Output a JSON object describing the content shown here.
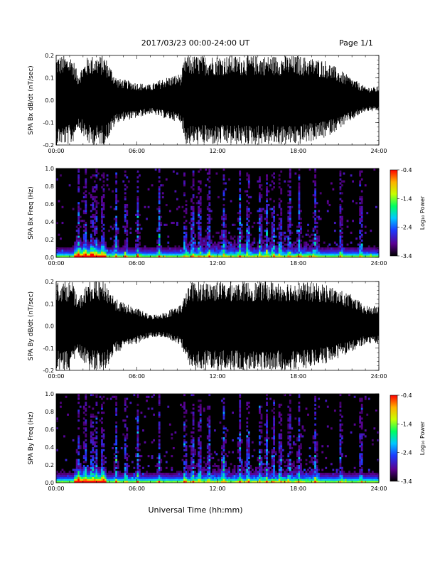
{
  "header": {
    "title": "2017/03/23  00:00-24:00 UT",
    "page": "Page 1/1"
  },
  "footer": {
    "xlabel": "Universal Time (hh:mm)"
  },
  "colors": {
    "background": "#000000",
    "colormap": [
      "#000000",
      "#5b0090",
      "#1b3bff",
      "#00c8ff",
      "#00ff60",
      "#c8ff00",
      "#ffb000",
      "#ff0000"
    ]
  },
  "chart_data": [
    {
      "type": "line",
      "ylabel": "SPA Bx dB/dt (nT/sec)",
      "x_ticks": [
        "00:00",
        "06:00",
        "12:00",
        "18:00",
        "24:00"
      ],
      "x_range_hours": [
        0,
        24
      ],
      "ylim": [
        -0.2,
        0.2
      ],
      "y_ticks": [
        "0.2",
        "0.1",
        "0.0",
        "-0.1",
        "-0.2"
      ],
      "y_tick_values": [
        0.2,
        0.1,
        0.0,
        -0.1,
        -0.2
      ],
      "envelope": {
        "hours": [
          0,
          1.2,
          1.6,
          2.4,
          3.6,
          4.5,
          5.2,
          6.0,
          7.0,
          8.0,
          9.3,
          9.6,
          12.0,
          15.0,
          18.0,
          20.0,
          22.0,
          23.0,
          24.0
        ],
        "max": [
          0.2,
          0.2,
          0.12,
          0.2,
          0.2,
          0.1,
          0.09,
          0.08,
          0.07,
          0.1,
          0.12,
          0.2,
          0.2,
          0.2,
          0.2,
          0.18,
          0.1,
          0.06,
          0.06
        ],
        "min": [
          -0.2,
          -0.2,
          -0.12,
          -0.2,
          -0.2,
          -0.1,
          -0.09,
          -0.08,
          -0.06,
          -0.08,
          -0.1,
          -0.2,
          -0.2,
          -0.2,
          -0.2,
          -0.17,
          -0.09,
          -0.05,
          -0.05
        ]
      }
    },
    {
      "type": "heatmap",
      "ylabel": "SPA Bx Freq (Hz)",
      "x_ticks": [
        "00:00",
        "06:00",
        "12:00",
        "18:00",
        "24:00"
      ],
      "ylim": [
        0,
        1.0
      ],
      "y_ticks": [
        "1.0",
        "0.8",
        "0.6",
        "0.4",
        "0.2",
        "0.0"
      ],
      "y_tick_values": [
        1.0,
        0.8,
        0.6,
        0.4,
        0.2,
        0.0
      ],
      "colorbar": {
        "label": "Log₁₀ Power",
        "range": [
          -3.4,
          -0.4
        ],
        "ticks": [
          "-0.4",
          "-1.4",
          "-2.4",
          "-3.4"
        ],
        "tick_values": [
          -0.4,
          -1.4,
          -2.4,
          -3.4
        ]
      }
    },
    {
      "type": "line",
      "ylabel": "SPA By dB/dt (nT/sec)",
      "x_ticks": [
        "00:00",
        "06:00",
        "12:00",
        "18:00",
        "24:00"
      ],
      "x_range_hours": [
        0,
        24
      ],
      "ylim": [
        -0.2,
        0.2
      ],
      "y_ticks": [
        "0.2",
        "0.1",
        "0.0",
        "-0.1",
        "-0.2"
      ],
      "y_tick_values": [
        0.2,
        0.1,
        0.0,
        -0.1,
        -0.2
      ],
      "envelope": {
        "hours": [
          0,
          1.2,
          1.6,
          2.4,
          3.6,
          4.5,
          5.2,
          6.0,
          7.0,
          8.0,
          9.3,
          10.0,
          12.0,
          15.0,
          18.0,
          20.0,
          22.0,
          23.0,
          24.0
        ],
        "max": [
          0.2,
          0.2,
          0.12,
          0.2,
          0.2,
          0.12,
          0.1,
          0.08,
          0.05,
          0.06,
          0.1,
          0.2,
          0.2,
          0.2,
          0.2,
          0.19,
          0.14,
          0.09,
          0.09
        ],
        "min": [
          -0.2,
          -0.2,
          -0.12,
          -0.2,
          -0.2,
          -0.12,
          -0.1,
          -0.08,
          -0.05,
          -0.05,
          -0.09,
          -0.2,
          -0.2,
          -0.2,
          -0.2,
          -0.17,
          -0.12,
          -0.08,
          -0.08
        ]
      }
    },
    {
      "type": "heatmap",
      "ylabel": "SPA By Freq (Hz)",
      "x_ticks": [
        "00:00",
        "06:00",
        "12:00",
        "18:00",
        "24:00"
      ],
      "ylim": [
        0,
        1.0
      ],
      "y_ticks": [
        "1.0",
        "0.8",
        "0.6",
        "0.4",
        "0.2",
        "0.0"
      ],
      "y_tick_values": [
        1.0,
        0.8,
        0.6,
        0.4,
        0.2,
        0.0
      ],
      "colorbar": {
        "label": "Log₁₀ Power",
        "range": [
          -3.4,
          -0.4
        ],
        "ticks": [
          "-0.4",
          "-1.4",
          "-2.4",
          "-3.4"
        ],
        "tick_values": [
          -0.4,
          -1.4,
          -2.4,
          -3.4
        ]
      }
    }
  ]
}
